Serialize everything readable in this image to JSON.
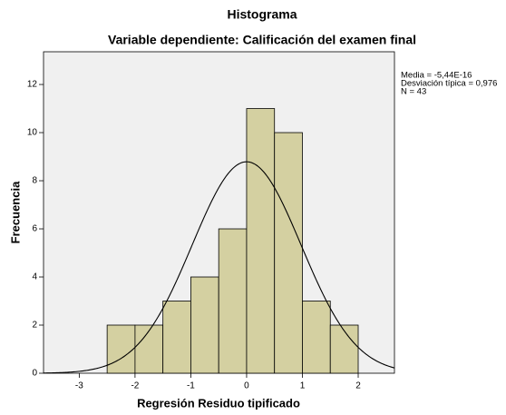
{
  "chart_data": {
    "type": "histogram",
    "title": "Histograma",
    "subtitle": "Variable dependiente: Calificación del examen final",
    "xlabel": "Regresión Residuo tipificado",
    "ylabel": "Frecuencia",
    "bins": [
      -2.5,
      -2,
      -1.5,
      -1,
      -0.5,
      0,
      0.5,
      1,
      1.5,
      2
    ],
    "values": [
      2,
      2,
      3,
      4,
      6,
      11,
      10,
      3,
      2
    ],
    "color": "#d4d0a1",
    "xlim": [
      -3.64,
      2.65
    ],
    "ylim": [
      0,
      13.36
    ],
    "xticks": [
      -3,
      -2,
      -1,
      0,
      1,
      2
    ],
    "yticks": [
      0,
      2,
      4,
      6,
      8,
      10,
      12
    ],
    "stats": [
      {
        "value": -5.44e-16,
        "label": "Media = -5,44E-16"
      },
      {
        "value": 0.976,
        "label": "Desviación típica = 0,976"
      },
      {
        "value": 43,
        "label": "N = 43"
      }
    ]
  }
}
